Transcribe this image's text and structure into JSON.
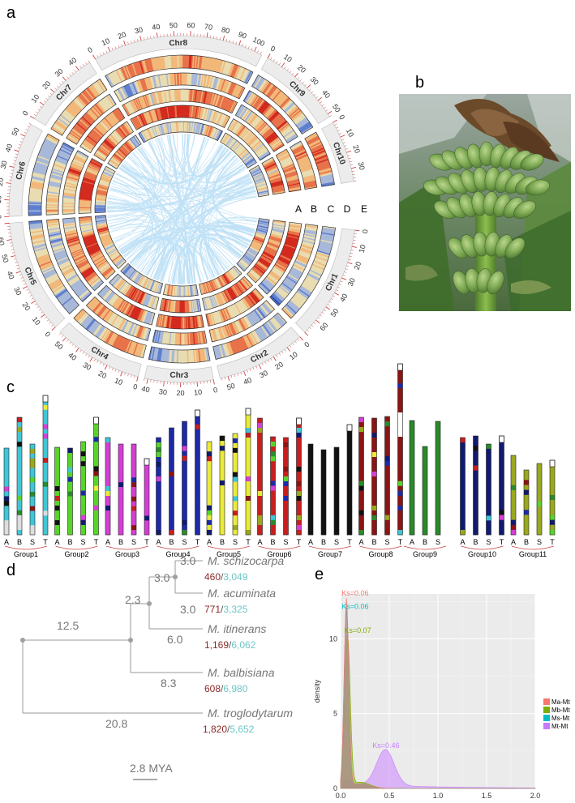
{
  "panels": {
    "a": "a",
    "b": "b",
    "c": "c",
    "d": "d",
    "e": "e"
  },
  "circos": {
    "chromosomes": [
      {
        "name": "Chr1",
        "size": 70,
        "ticks": [
          0,
          10,
          20,
          30,
          40,
          50,
          60
        ]
      },
      {
        "name": "Chr2",
        "size": 55,
        "ticks": [
          0,
          10,
          20,
          30,
          40,
          50
        ]
      },
      {
        "name": "Chr3",
        "size": 42,
        "ticks": [
          0,
          10,
          20,
          30,
          40
        ]
      },
      {
        "name": "Chr4",
        "size": 55,
        "ticks": [
          0,
          10,
          20,
          30,
          40,
          50
        ]
      },
      {
        "name": "Chr5",
        "size": 70,
        "ticks": [
          0,
          10,
          20,
          30,
          40,
          50,
          60
        ]
      },
      {
        "name": "Chr6",
        "size": 58,
        "ticks": [
          0,
          10,
          20,
          30,
          40,
          50
        ]
      },
      {
        "name": "Chr7",
        "size": 48,
        "ticks": [
          0,
          10,
          20,
          30,
          40
        ]
      },
      {
        "name": "Chr8",
        "size": 105,
        "ticks": [
          0,
          10,
          20,
          30,
          40,
          50,
          60,
          70,
          80,
          90,
          100
        ]
      },
      {
        "name": "Chr9",
        "size": 52,
        "ticks": [
          0,
          10,
          20,
          30,
          40,
          50
        ]
      },
      {
        "name": "Chr10",
        "size": 38,
        "ticks": [
          0,
          10,
          20,
          30
        ]
      }
    ],
    "track_letters": [
      "A",
      "B",
      "C",
      "D",
      "E"
    ],
    "heat_colors": [
      "#1f3fb3",
      "#5f7fd0",
      "#a8b8d8",
      "#e8dcb0",
      "#f2b87a",
      "#e8724a",
      "#d42a1e"
    ],
    "link_color": "#8fcbf0"
  },
  "photo": {
    "description_icon": "banana-plant-photo"
  },
  "karyotype": {
    "columns": [
      "A",
      "B",
      "S",
      "T"
    ],
    "groups": [
      "Group1",
      "Group2",
      "Group3",
      "Group4",
      "Group5",
      "Group6",
      "Group7",
      "Group8",
      "Group9",
      "Group10",
      "Group11"
    ],
    "group9_columns": [
      "A",
      "B",
      "S"
    ],
    "colors": {
      "G1": "#3fc6d6",
      "G2": "#57d42a",
      "G3": "#d43fd4",
      "G4": "#1c2aa8",
      "G5": "#eaea3a",
      "G6": "#c81e1e",
      "G7": "#111111",
      "G8": "#8b1414",
      "G9": "#2a8a2a",
      "G10": "#101a70",
      "G11": "#9aa81e"
    }
  },
  "tree": {
    "species": [
      "M. schizocarpa",
      "M. acuminata",
      "M. itinerans",
      "M. balbisiana",
      "M. troglodytarum"
    ],
    "gains": [
      "460",
      "771",
      "1,169",
      "608",
      "1,820"
    ],
    "losses": [
      "3,049",
      "3,325",
      "6,062",
      "6,980",
      "5,652"
    ],
    "branch_lengths": [
      "3.0",
      "3.0",
      "3.0",
      "2.3",
      "6.0",
      "12.5",
      "8.3",
      "20.8"
    ],
    "scale_label": "2.8 MYA"
  },
  "chart_data": {
    "type": "area",
    "xlim": [
      0,
      2.0
    ],
    "ylim": [
      0,
      13
    ],
    "xticks": [
      "0.0",
      "0.5",
      "1.0",
      "1.5",
      "2.0"
    ],
    "yticks": [
      "0",
      "5",
      "10"
    ],
    "ylabel": "density",
    "xlabel": "",
    "legend_position": "right",
    "series": [
      {
        "name": "Ma-Mt",
        "color": "#f8766d",
        "peak": 0.06,
        "peak_density": 12.6,
        "label": "Ks=0.06"
      },
      {
        "name": "Mb-Mt",
        "color": "#7cae00",
        "peak": 0.07,
        "peak_density": 10.2,
        "label": "Ks=0.07"
      },
      {
        "name": "Ms-Mt",
        "color": "#00bfc4",
        "peak": 0.06,
        "peak_density": 12.0,
        "label": "Ks=0.06"
      },
      {
        "name": "Mt-Mt",
        "color": "#c77cff",
        "peak": 0.46,
        "peak_density": 2.4,
        "label": "Ks=0.46"
      }
    ]
  }
}
